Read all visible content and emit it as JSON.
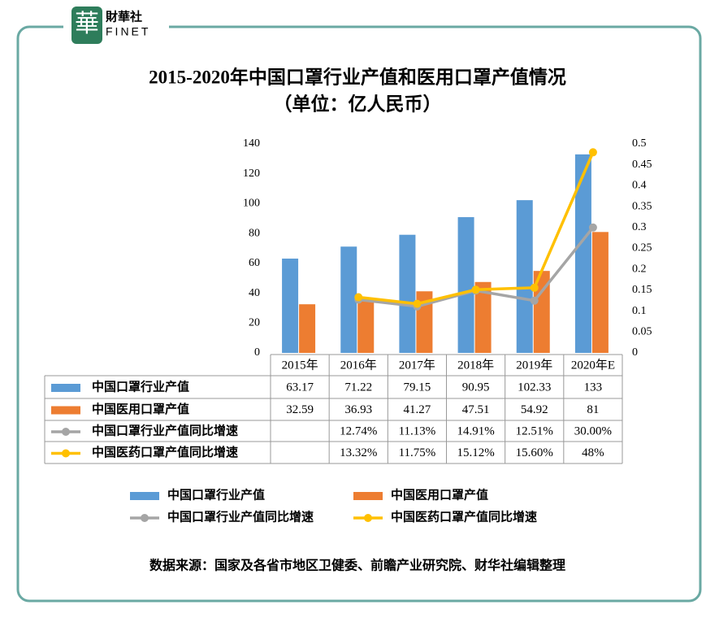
{
  "logo": {
    "glyph": "華",
    "name": "財華社",
    "brand": "FINET"
  },
  "chart_data": {
    "type": "bar-line",
    "title": "2015-2020年中国口罩行业产值和医用口罩产值情况",
    "subtitle": "（单位：亿人民币）",
    "categories": [
      "2015年",
      "2016年",
      "2017年",
      "2018年",
      "2019年",
      "2020年E"
    ],
    "ylim": [
      0,
      140
    ],
    "yticks": [
      0,
      20,
      40,
      60,
      80,
      100,
      120,
      140
    ],
    "y2lim": [
      0,
      0.5
    ],
    "y2ticks": [
      0,
      0.05,
      0.1,
      0.15,
      0.2,
      0.25,
      0.3,
      0.35,
      0.4,
      0.45,
      0.5
    ],
    "series": [
      {
        "name": "中国口罩行业产值",
        "type": "bar",
        "color": "#5b9bd5",
        "values": [
          63.17,
          71.22,
          79.15,
          90.95,
          102.33,
          133
        ]
      },
      {
        "name": "中国医用口罩产值",
        "type": "bar",
        "color": "#ed7d31",
        "values": [
          32.59,
          36.93,
          41.27,
          47.51,
          54.92,
          81
        ]
      },
      {
        "name": "中国口罩行业产值同比增速",
        "type": "line",
        "axis": "y2",
        "color": "#a5a5a5",
        "values": [
          null,
          0.1274,
          0.1113,
          0.1491,
          0.1251,
          0.3
        ],
        "value_labels": [
          null,
          "12.74%",
          "11.13%",
          "14.91%",
          "12.51%",
          "30.00%"
        ]
      },
      {
        "name": "中国医药口罩产值同比增速",
        "type": "line",
        "axis": "y2",
        "color": "#ffc000",
        "values": [
          null,
          0.1332,
          0.1175,
          0.1512,
          0.156,
          0.48
        ],
        "value_labels": [
          null,
          "13.32%",
          "11.75%",
          "15.12%",
          "15.60%",
          "48%"
        ]
      }
    ],
    "source": "数据来源：国家及各省市地区卫健委、前瞻产业研究院、财华社编辑整理"
  }
}
